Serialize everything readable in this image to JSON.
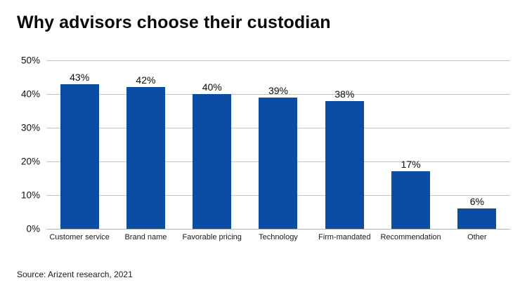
{
  "title": "Why advisors choose their custodian",
  "source": "Source: Arizent research, 2021",
  "chart_data": {
    "type": "bar",
    "title": "Why advisors choose their custodian",
    "categories": [
      "Customer service",
      "Brand name",
      "Favorable pricing",
      "Technology",
      "Firm-mandated",
      "Recommendation",
      "Other"
    ],
    "values": [
      43,
      42,
      40,
      39,
      38,
      17,
      6
    ],
    "value_labels": [
      "43%",
      "42%",
      "40%",
      "39%",
      "38%",
      "17%",
      "6%"
    ],
    "xlabel": "",
    "ylabel": "",
    "ylim": [
      0,
      50
    ],
    "ytick_step": 10,
    "ytick_labels": [
      "0%",
      "10%",
      "20%",
      "30%",
      "40%",
      "50%"
    ],
    "grid": true,
    "legend": "none",
    "bar_color": "#0b4da2",
    "background_color": "#ffffff"
  }
}
